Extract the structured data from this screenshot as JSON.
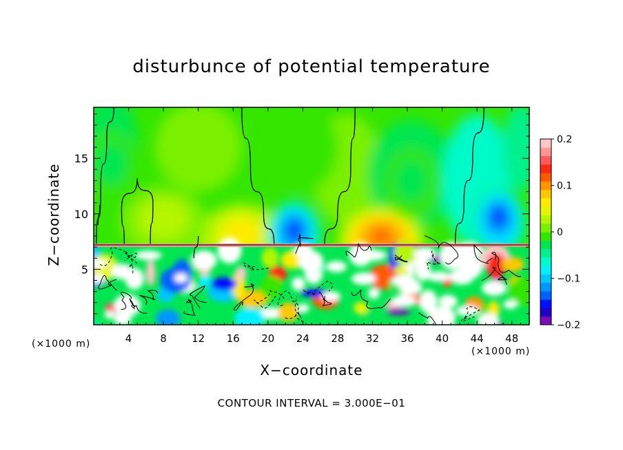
{
  "chart_data": {
    "type": "heatmap",
    "title": "disturbunce of potential temperature",
    "xlabel": "X−coordinate",
    "ylabel": "Z−coordinate",
    "x_unit_left": "(×1000 m)",
    "x_unit_right": "(×1000 m)",
    "x_ticks": [
      4,
      8,
      12,
      16,
      20,
      24,
      28,
      32,
      36,
      40,
      44,
      48
    ],
    "y_ticks": [
      5,
      10,
      15
    ],
    "xlim": [
      0,
      50
    ],
    "ylim": [
      0,
      19.6
    ],
    "colorbar": {
      "range": [
        -0.2,
        0.2
      ],
      "tick_labels": [
        "0.2",
        "0.1",
        "0",
        "−0.1",
        "−0.2"
      ],
      "tick_values": [
        0.2,
        0.1,
        0,
        -0.1,
        -0.2
      ],
      "colors": [
        "#7a0fb4",
        "#1f00c8",
        "#0010ff",
        "#0062ff",
        "#0096ff",
        "#00c8ff",
        "#00f0ff",
        "#00fac8",
        "#00f08c",
        "#00e650",
        "#34e600",
        "#7af000",
        "#b4f500",
        "#e6f500",
        "#ffeb00",
        "#ffc800",
        "#ff9600",
        "#ff5a00",
        "#ff2814",
        "#ff5a5a",
        "#ff9696",
        "#ffc8c8"
      ]
    },
    "features": [
      {
        "kind": "warm_anomaly",
        "x": 33,
        "z": 8.2,
        "value": 0.12
      },
      {
        "kind": "warm_anomaly",
        "x": 17,
        "z": 8.5,
        "value": 0.07
      },
      {
        "kind": "warm_anomaly",
        "x": 8,
        "z": 10,
        "value": 0.03
      },
      {
        "kind": "cold_anomaly",
        "x": 23,
        "z": 8.8,
        "value": -0.16
      },
      {
        "kind": "cold_anomaly",
        "x": 46.5,
        "z": 10,
        "value": -0.16
      },
      {
        "kind": "cold_anomaly",
        "x": 36.5,
        "z": 13.5,
        "value": -0.03
      },
      {
        "kind": "cold_anomaly",
        "x": 2,
        "z": 15,
        "value": -0.03
      }
    ],
    "turbulent_layer_top": 7.2,
    "contour_interval_text": "CONTOUR INTERVAL = 3.000E−01"
  }
}
